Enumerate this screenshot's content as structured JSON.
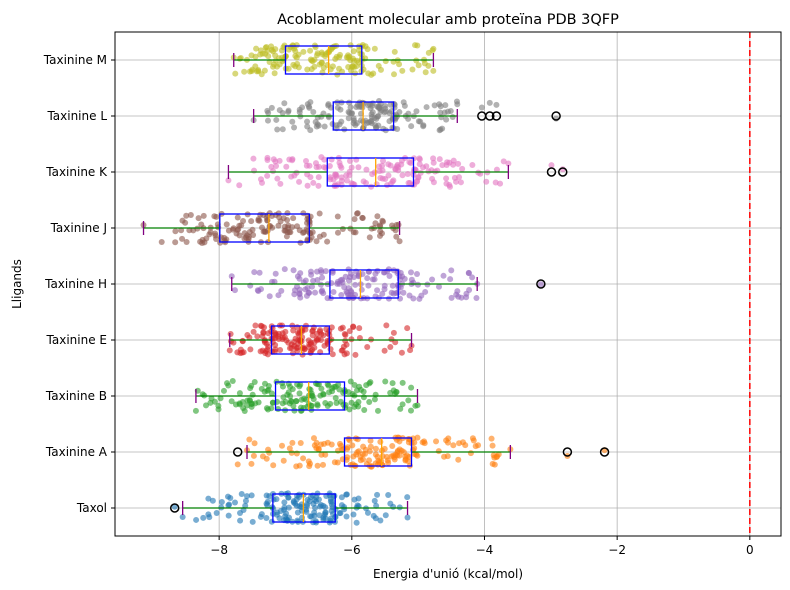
{
  "chart_data": {
    "type": "boxplot-strip",
    "orientation": "horizontal",
    "title": "Acoblament molecular amb proteïna PDB 3QFP",
    "xlabel": "Energia d'unió (kcal/mol)",
    "ylabel": "Lligands",
    "xlim": [
      -9.57,
      0.47
    ],
    "xticks": [
      -8,
      -6,
      -4,
      -2,
      0
    ],
    "xtick_labels": [
      "−8",
      "−6",
      "−4",
      "−2",
      "0"
    ],
    "grid": true,
    "reference_line": {
      "x": 0,
      "color": "#ff0000",
      "style": "dashed"
    },
    "series": [
      {
        "name": "Taxol",
        "color": "#1f77b4",
        "whisker_low": -8.55,
        "q1": -7.19,
        "median": -6.73,
        "q3": -6.25,
        "whisker_high": -5.16,
        "outliers": [
          -8.67
        ],
        "n_points": 160
      },
      {
        "name": "Taxinine A",
        "color": "#ff7f0e",
        "whisker_low": -7.58,
        "q1": -6.11,
        "median": -5.55,
        "q3": -5.1,
        "whisker_high": -3.61,
        "outliers": [
          -7.72,
          -2.75,
          -2.19
        ],
        "n_points": 160
      },
      {
        "name": "Taxinine B",
        "color": "#2ca02c",
        "whisker_low": -8.35,
        "q1": -7.15,
        "median": -6.65,
        "q3": -6.11,
        "whisker_high": -5.01,
        "outliers": [],
        "n_points": 160
      },
      {
        "name": "Taxinine E",
        "color": "#d62728",
        "whisker_low": -7.84,
        "q1": -7.21,
        "median": -6.76,
        "q3": -6.34,
        "whisker_high": -5.1,
        "outliers": [],
        "n_points": 160
      },
      {
        "name": "Taxinine H",
        "color": "#9467bd",
        "whisker_low": -7.81,
        "q1": -6.33,
        "median": -5.87,
        "q3": -5.3,
        "whisker_high": -4.11,
        "outliers": [
          -3.15
        ],
        "n_points": 160
      },
      {
        "name": "Taxinine J",
        "color": "#8c564b",
        "whisker_low": -9.14,
        "q1": -7.99,
        "median": -7.25,
        "q3": -6.64,
        "whisker_high": -5.28,
        "outliers": [],
        "n_points": 160
      },
      {
        "name": "Taxinine K",
        "color": "#e377c2",
        "whisker_low": -7.86,
        "q1": -6.37,
        "median": -5.64,
        "q3": -5.07,
        "whisker_high": -3.64,
        "outliers": [
          -2.99,
          -2.82
        ],
        "n_points": 160
      },
      {
        "name": "Taxinine L",
        "color": "#7f7f7f",
        "whisker_low": -7.48,
        "q1": -6.28,
        "median": -5.83,
        "q3": -5.37,
        "whisker_high": -4.41,
        "outliers": [
          -4.04,
          -3.92,
          -3.82,
          -2.92
        ],
        "n_points": 160
      },
      {
        "name": "Taxinine M",
        "color": "#bcbd22",
        "whisker_low": -7.78,
        "q1": -7.0,
        "median": -6.35,
        "q3": -5.85,
        "whisker_high": -4.77,
        "outliers": [],
        "n_points": 160
      }
    ],
    "style_colors": {
      "box": "#0000ff",
      "median": "#ffa500",
      "whisker": "#008000",
      "cap": "#800080",
      "outlier": "#000000",
      "grid": "#b0b0b0"
    }
  }
}
